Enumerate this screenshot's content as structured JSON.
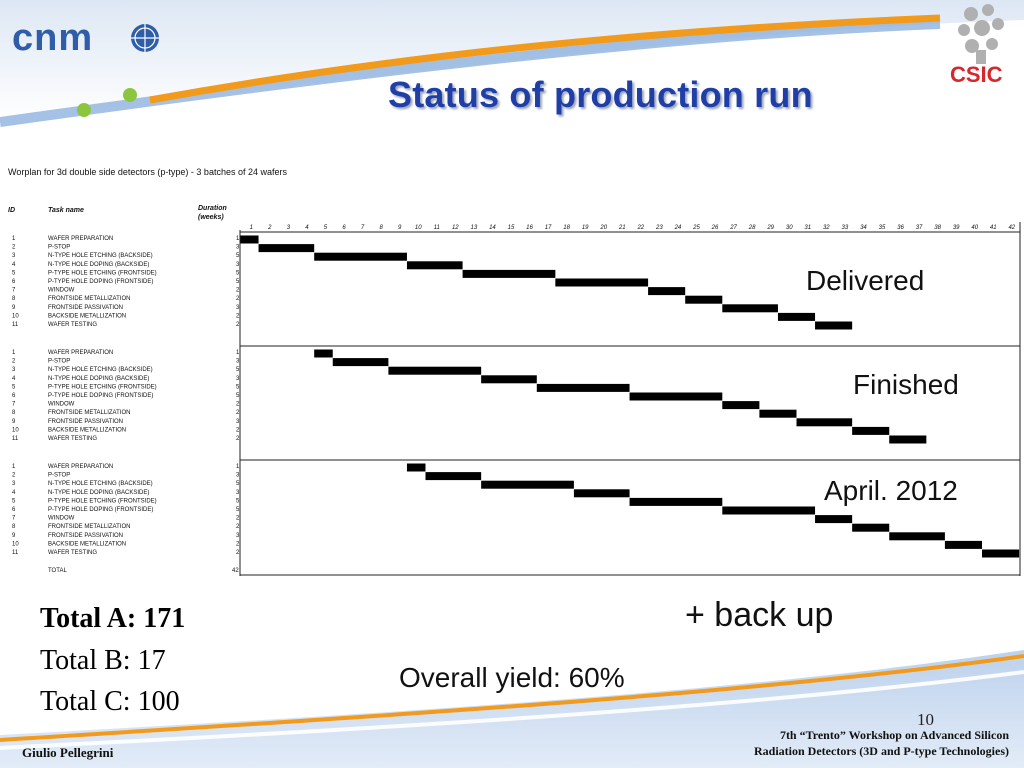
{
  "slide": {
    "title": "Status of production run",
    "logo_left_text": "cnm",
    "logo_right_text": "CSIC",
    "page_number": "10",
    "author": "Giulio Pellegrini",
    "workshop_line1": "7th “Trento” Workshop on Advanced Silicon",
    "workshop_line2": "Radiation Detectors (3D and P-type Technologies)"
  },
  "gantt": {
    "heading": "Worplan for 3d double side detectors (p-type) - 3 batches of 24 wafers",
    "col_id": "ID",
    "col_task": "Task name",
    "col_duration": "Duration",
    "col_duration_unit": "(weeks)",
    "weeks": [
      "1",
      "2",
      "3",
      "4",
      "5",
      "6",
      "7",
      "8",
      "9",
      "10",
      "11",
      "12",
      "13",
      "14",
      "15",
      "16",
      "17",
      "18",
      "19",
      "20",
      "21",
      "22",
      "23",
      "24",
      "25",
      "26",
      "27",
      "28",
      "29",
      "30",
      "31",
      "32",
      "33",
      "34",
      "35",
      "36",
      "37",
      "38",
      "39",
      "40",
      "41",
      "42"
    ],
    "tasks": [
      {
        "id": "1",
        "name": "WAFER PREPARATION",
        "duration": "1"
      },
      {
        "id": "2",
        "name": "P-STOP",
        "duration": "3"
      },
      {
        "id": "3",
        "name": "N-TYPE HOLE ETCHING (BACKSIDE)",
        "duration": "5"
      },
      {
        "id": "4",
        "name": "N-TYPE HOLE DOPING (BACKSIDE)",
        "duration": "3"
      },
      {
        "id": "5",
        "name": "P-TYPE HOLE ETCHING (FRONTSIDE)",
        "duration": "5"
      },
      {
        "id": "6",
        "name": "P-TYPE HOLE DOPING (FRONTSIDE)",
        "duration": "5"
      },
      {
        "id": "7",
        "name": "WINDOW",
        "duration": "2"
      },
      {
        "id": "8",
        "name": "FRONTSIDE METALLIZATION",
        "duration": "2"
      },
      {
        "id": "9",
        "name": "FRONTSIDE PASSIVATION",
        "duration": "3"
      },
      {
        "id": "10",
        "name": "BACKSIDE METALLIZATION",
        "duration": "2"
      },
      {
        "id": "11",
        "name": "WAFER TESTING",
        "duration": "2"
      }
    ],
    "batches": [
      {
        "start_week": 1,
        "status": "Delivered"
      },
      {
        "start_week": 5,
        "status": "Finished"
      },
      {
        "start_week": 10,
        "status": "April. 2012"
      }
    ],
    "total_label": "TOTAL",
    "total_duration": "42"
  },
  "notes": {
    "total_a": "Total A: 171",
    "total_b": "Total B: 17",
    "total_c": "Total C: 100",
    "backup": "+ back up",
    "yield": "Overall yield: 60%"
  },
  "colors": {
    "title": "#1f3fa6",
    "swoosh_orange": "#f29a1c",
    "swoosh_blue": "#8fb2df",
    "dot_green": "#8cc63f",
    "logo_blue": "#2f5da8",
    "csic_red": "#d7262c"
  }
}
